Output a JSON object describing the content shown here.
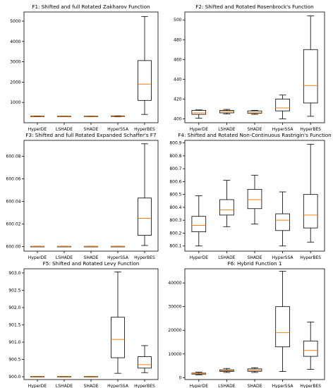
{
  "colors": {
    "median": "#ff7f0e",
    "box": "#000000"
  },
  "chart_data": [
    {
      "type": "box",
      "title": "F1: Shifted and full Rotated Zakharov Function",
      "categories": [
        "HyperDE",
        "LSHADE",
        "SHADE",
        "HyperSSA",
        "HyperBES"
      ],
      "ylim": [
        0,
        5450
      ],
      "yticks": [
        1000,
        2000,
        3000,
        4000,
        5000
      ],
      "ytick_labels": [
        "1000",
        "2000",
        "3000",
        "4000",
        "5000"
      ],
      "boxes": [
        {
          "whislo": 290,
          "q1": 300,
          "med": 305,
          "q3": 312,
          "whishi": 325
        },
        {
          "whislo": 295,
          "q1": 300,
          "med": 304,
          "q3": 309,
          "whishi": 320
        },
        {
          "whislo": 295,
          "q1": 300,
          "med": 304,
          "q3": 310,
          "whishi": 320
        },
        {
          "whislo": 290,
          "q1": 300,
          "med": 310,
          "q3": 320,
          "whishi": 340
        },
        {
          "whislo": 410,
          "q1": 1100,
          "med": 1900,
          "q3": 3060,
          "whishi": 5230
        }
      ]
    },
    {
      "type": "box",
      "title": "F2: Shifted and Rotated Rosenbrock's Function",
      "categories": [
        "HyperDE",
        "LSHADE",
        "SHADE",
        "HyperSSA",
        "HyperBES"
      ],
      "ylim": [
        396,
        508
      ],
      "yticks": [
        400,
        420,
        440,
        460,
        480,
        500
      ],
      "ytick_labels": [
        "400",
        "420",
        "440",
        "460",
        "480",
        "500"
      ],
      "boxes": [
        {
          "whislo": 400.5,
          "q1": 404.5,
          "med": 406,
          "q3": 408.5,
          "whishi": 409
        },
        {
          "whislo": 405,
          "q1": 406,
          "med": 407.5,
          "q3": 408.5,
          "whishi": 409.5
        },
        {
          "whislo": 404.5,
          "q1": 405.5,
          "med": 406,
          "q3": 408,
          "whishi": 408.5
        },
        {
          "whislo": 400,
          "q1": 408,
          "med": 411,
          "q3": 420,
          "whishi": 424
        },
        {
          "whislo": 402.5,
          "q1": 416,
          "med": 433.5,
          "q3": 470,
          "whishi": 504
        }
      ]
    },
    {
      "type": "box",
      "title": "F3: Shifted and full Rotated Expanded Schaffer's F7",
      "categories": [
        "HyperDE",
        "LSHADE",
        "SHADE",
        "HyperSSA",
        "HyperBES"
      ],
      "ylim": [
        599.996,
        600.094
      ],
      "yticks": [
        600.0,
        600.02,
        600.04,
        600.06,
        600.08
      ],
      "ytick_labels": [
        "600.00",
        "600.02",
        "600.04",
        "600.06",
        "600.08"
      ],
      "boxes": [
        {
          "whislo": 599.9999,
          "q1": 600.0,
          "med": 600.0,
          "q3": 600.0,
          "whishi": 600.0002
        },
        {
          "whislo": 599.9999,
          "q1": 600.0,
          "med": 600.0,
          "q3": 600.0,
          "whishi": 600.0002
        },
        {
          "whislo": 599.9999,
          "q1": 600.0,
          "med": 600.0,
          "q3": 600.0,
          "whishi": 600.0002
        },
        {
          "whislo": 599.9999,
          "q1": 600.0,
          "med": 600.0,
          "q3": 600.0,
          "whishi": 600.0002
        },
        {
          "whislo": 600.001,
          "q1": 600.01,
          "med": 600.025,
          "q3": 600.043,
          "whishi": 600.091
        }
      ]
    },
    {
      "type": "box",
      "title": "F4: Shifted and Rotated Non-Continuous Rastrigin's Function",
      "categories": [
        "HyperDE",
        "LSHADE",
        "SHADE",
        "HyperSSA",
        "HyperBES"
      ],
      "ylim": [
        800.06,
        800.92
      ],
      "yticks": [
        800.1,
        800.2,
        800.3,
        800.4,
        800.5,
        800.6,
        800.7,
        800.8,
        800.9
      ],
      "ytick_labels": [
        "800.1",
        "800.2",
        "800.3",
        "800.4",
        "800.5",
        "800.6",
        "800.7",
        "800.8",
        "800.9"
      ],
      "boxes": [
        {
          "whislo": 800.1,
          "q1": 800.21,
          "med": 800.26,
          "q3": 800.33,
          "whishi": 800.49
        },
        {
          "whislo": 800.25,
          "q1": 800.34,
          "med": 800.38,
          "q3": 800.46,
          "whishi": 800.61
        },
        {
          "whislo": 800.27,
          "q1": 800.39,
          "med": 800.46,
          "q3": 800.54,
          "whishi": 800.65
        },
        {
          "whislo": 800.1,
          "q1": 800.22,
          "med": 800.3,
          "q3": 800.35,
          "whishi": 800.52
        },
        {
          "whislo": 800.13,
          "q1": 800.24,
          "med": 800.34,
          "q3": 800.5,
          "whishi": 800.89
        }
      ]
    },
    {
      "type": "box",
      "title": "F5: Shifted and Rotated Levy Function",
      "categories": [
        "HyperDE",
        "LSHADE",
        "SHADE",
        "HyperSSA",
        "HyperBES"
      ],
      "ylim": [
        899.92,
        903.12
      ],
      "yticks": [
        900.0,
        900.5,
        901.0,
        901.5,
        902.0,
        902.5,
        903.0
      ],
      "ytick_labels": [
        "900.0",
        "900.5",
        "901.0",
        "901.5",
        "902.0",
        "902.5",
        "903.0"
      ],
      "boxes": [
        {
          "whislo": 899.995,
          "q1": 900.0,
          "med": 900.0,
          "q3": 900.0,
          "whishi": 900.005
        },
        {
          "whislo": 899.995,
          "q1": 900.0,
          "med": 900.0,
          "q3": 900.0,
          "whishi": 900.005
        },
        {
          "whislo": 899.995,
          "q1": 900.0,
          "med": 900.0,
          "q3": 900.0,
          "whishi": 900.005
        },
        {
          "whislo": 900.1,
          "q1": 900.55,
          "med": 901.08,
          "q3": 901.72,
          "whishi": 903.03
        },
        {
          "whislo": 900.12,
          "q1": 900.25,
          "med": 900.35,
          "q3": 900.58,
          "whishi": 900.9
        }
      ]
    },
    {
      "type": "box",
      "title": "F6: Hybrid Function 1",
      "categories": [
        "HyperDE",
        "LSHADE",
        "SHADE",
        "HyperSSA",
        "HyperBES"
      ],
      "ylim": [
        -800,
        46000
      ],
      "yticks": [
        0,
        10000,
        20000,
        30000,
        40000
      ],
      "ytick_labels": [
        "0",
        "10000",
        "20000",
        "30000",
        "40000"
      ],
      "boxes": [
        {
          "whislo": 1200,
          "q1": 1500,
          "med": 1700,
          "q3": 1900,
          "whishi": 2300
        },
        {
          "whislo": 2200,
          "q1": 2600,
          "med": 2900,
          "q3": 3300,
          "whishi": 3900
        },
        {
          "whislo": 2200,
          "q1": 2700,
          "med": 3100,
          "q3": 3700,
          "whishi": 4200
        },
        {
          "whislo": 2600,
          "q1": 13000,
          "med": 19000,
          "q3": 30000,
          "whishi": 45000
        },
        {
          "whislo": 3500,
          "q1": 9000,
          "med": 11500,
          "q3": 15500,
          "whishi": 23500
        }
      ]
    }
  ]
}
